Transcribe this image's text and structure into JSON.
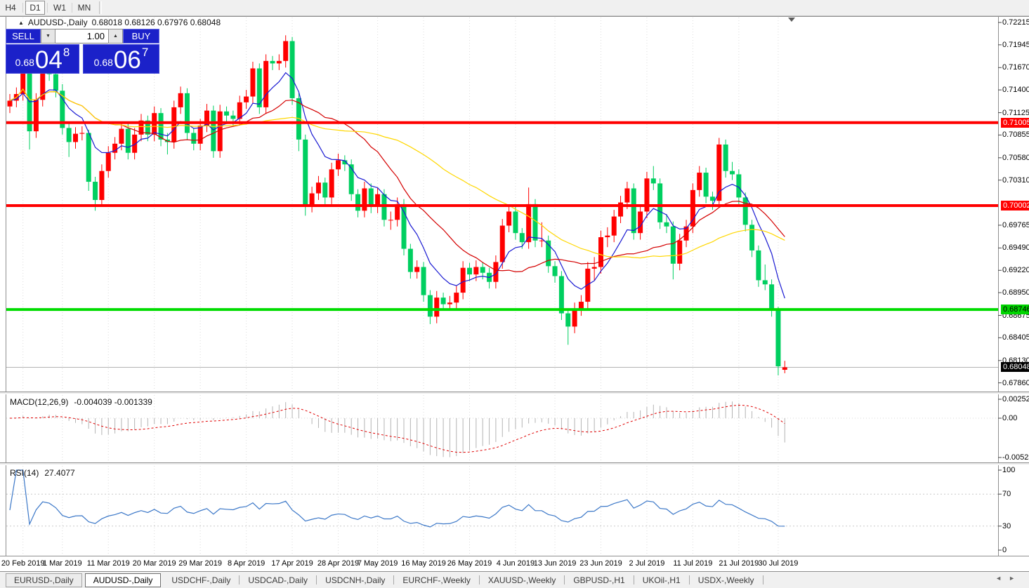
{
  "toolbar": {
    "timeframes": [
      {
        "label": "H4",
        "active": false
      },
      {
        "label": "D1",
        "active": true
      },
      {
        "label": "W1",
        "active": false
      },
      {
        "label": "MN",
        "active": false
      }
    ]
  },
  "chart": {
    "title": {
      "symbol": "AUDUSD-,Daily",
      "ohlc": "0.68018 0.68126 0.67976 0.68048"
    },
    "trade_panel": {
      "sell_label": "SELL",
      "buy_label": "BUY",
      "volume": "1.00",
      "sell_price": {
        "prefix": "0.68",
        "big": "04",
        "sup": "8"
      },
      "buy_price": {
        "prefix": "0.68",
        "big": "06",
        "sup": "7"
      },
      "panel_color": "#1b21c9"
    }
  },
  "price_scale": {
    "ticks": [
      {
        "label": "0.72215",
        "value": 0.72215
      },
      {
        "label": "0.71945",
        "value": 0.71945
      },
      {
        "label": "0.71670",
        "value": 0.7167
      },
      {
        "label": "0.71400",
        "value": 0.714
      },
      {
        "label": "0.71125",
        "value": 0.71125
      },
      {
        "label": "0.70855",
        "value": 0.70855
      },
      {
        "label": "0.70580",
        "value": 0.7058
      },
      {
        "label": "0.70310",
        "value": 0.7031
      },
      {
        "label": "0.69765",
        "value": 0.69765
      },
      {
        "label": "0.69490",
        "value": 0.6949
      },
      {
        "label": "0.69220",
        "value": 0.6922
      },
      {
        "label": "0.68950",
        "value": 0.6895
      },
      {
        "label": "0.68675",
        "value": 0.68675
      },
      {
        "label": "0.68405",
        "value": 0.68405
      },
      {
        "label": "0.68130",
        "value": 0.6813
      },
      {
        "label": "0.67860",
        "value": 0.6786
      }
    ],
    "markers": [
      {
        "label": "0.71005",
        "value": 0.71005,
        "bg": "#ff0000",
        "fg": "#ffffff"
      },
      {
        "label": "0.70002",
        "value": 0.70002,
        "bg": "#ff0000",
        "fg": "#ffffff"
      },
      {
        "label": "0.68746",
        "value": 0.68746,
        "bg": "#00d500",
        "fg": "#000000"
      },
      {
        "label": "0.68048",
        "value": 0.68048,
        "bg": "#000000",
        "fg": "#ffffff"
      }
    ]
  },
  "chart_data": {
    "type": "candlestick",
    "symbol": "AUDUSD-,Daily",
    "up_color": "#ff0000",
    "down_color": "#00cf60",
    "price_axis": {
      "top_value": 0.72283,
      "bottom_value": 0.67755
    },
    "horizontal_lines": [
      {
        "value": 0.71005,
        "color": "#ff0000",
        "width": 4
      },
      {
        "value": 0.70002,
        "color": "#ff0000",
        "width": 4
      },
      {
        "value": 0.68746,
        "color": "#00dc00",
        "width": 4
      }
    ],
    "current_price": {
      "value": 0.68048,
      "line_color": "#b4b4b4"
    },
    "moving_averages": [
      {
        "name": "fast",
        "color": "#1a1ad2",
        "method": "ema",
        "period": 8
      },
      {
        "name": "mid",
        "color": "#d40000",
        "method": "sma",
        "period": 18
      },
      {
        "name": "slow",
        "color": "#ffd700",
        "method": "sma",
        "period": 40
      }
    ],
    "x_ticks": [
      {
        "label": "20 Feb 2019",
        "index": 2
      },
      {
        "label": "1 Mar 2019",
        "index": 8
      },
      {
        "label": "11 Mar 2019",
        "index": 15
      },
      {
        "label": "20 Mar 2019",
        "index": 22
      },
      {
        "label": "29 Mar 2019",
        "index": 29
      },
      {
        "label": "8 Apr 2019",
        "index": 36
      },
      {
        "label": "17 Apr 2019",
        "index": 43
      },
      {
        "label": "28 Apr 2019",
        "index": 50
      },
      {
        "label": "7 May 2019",
        "index": 56
      },
      {
        "label": "16 May 2019",
        "index": 63
      },
      {
        "label": "26 May 2019",
        "index": 70
      },
      {
        "label": "4 Jun 2019",
        "index": 77
      },
      {
        "label": "13 Jun 2019",
        "index": 83
      },
      {
        "label": "23 Jun 2019",
        "index": 90
      },
      {
        "label": "2 Jul 2019",
        "index": 97
      },
      {
        "label": "11 Jul 2019",
        "index": 104
      },
      {
        "label": "21 Jul 2019",
        "index": 111
      },
      {
        "label": "30 Jul 2019",
        "index": 117
      }
    ],
    "bars": [
      [
        0.712,
        0.7135,
        0.7112,
        0.7127
      ],
      [
        0.7127,
        0.7143,
        0.7119,
        0.7135
      ],
      [
        0.7135,
        0.7168,
        0.7127,
        0.7161
      ],
      [
        0.7161,
        0.7164,
        0.7068,
        0.709
      ],
      [
        0.709,
        0.7136,
        0.7082,
        0.7128
      ],
      [
        0.7128,
        0.7177,
        0.712,
        0.7164
      ],
      [
        0.7164,
        0.717,
        0.7151,
        0.7159
      ],
      [
        0.7159,
        0.7165,
        0.7131,
        0.7139
      ],
      [
        0.7139,
        0.7147,
        0.7086,
        0.7094
      ],
      [
        0.7094,
        0.71,
        0.7059,
        0.7077
      ],
      [
        0.7077,
        0.7095,
        0.7069,
        0.7087
      ],
      [
        0.7087,
        0.7096,
        0.7079,
        0.7088
      ],
      [
        0.7088,
        0.7092,
        0.7018,
        0.7029
      ],
      [
        0.7029,
        0.7035,
        0.6994,
        0.7007
      ],
      [
        0.7007,
        0.705,
        0.6999,
        0.7042
      ],
      [
        0.7042,
        0.7072,
        0.7034,
        0.7064
      ],
      [
        0.7064,
        0.7083,
        0.7056,
        0.7075
      ],
      [
        0.7075,
        0.7101,
        0.7067,
        0.7093
      ],
      [
        0.7093,
        0.7099,
        0.7056,
        0.7064
      ],
      [
        0.7064,
        0.7094,
        0.7056,
        0.7086
      ],
      [
        0.7086,
        0.7111,
        0.7078,
        0.7103
      ],
      [
        0.7103,
        0.7109,
        0.7078,
        0.7086
      ],
      [
        0.7086,
        0.712,
        0.7078,
        0.7112
      ],
      [
        0.7112,
        0.7118,
        0.7072,
        0.708
      ],
      [
        0.708,
        0.7088,
        0.7062,
        0.7077
      ],
      [
        0.7077,
        0.7127,
        0.7069,
        0.7119
      ],
      [
        0.7119,
        0.7144,
        0.7111,
        0.7136
      ],
      [
        0.7136,
        0.7142,
        0.708,
        0.7088
      ],
      [
        0.7088,
        0.7094,
        0.7067,
        0.7075
      ],
      [
        0.7075,
        0.7105,
        0.7067,
        0.7097
      ],
      [
        0.7097,
        0.7123,
        0.7089,
        0.7115
      ],
      [
        0.7115,
        0.7121,
        0.7058,
        0.7066
      ],
      [
        0.7066,
        0.7122,
        0.7058,
        0.7114
      ],
      [
        0.7114,
        0.712,
        0.7101,
        0.7109
      ],
      [
        0.7109,
        0.7115,
        0.7097,
        0.7105
      ],
      [
        0.7105,
        0.7133,
        0.7097,
        0.7125
      ],
      [
        0.7125,
        0.714,
        0.7117,
        0.7132
      ],
      [
        0.7132,
        0.7174,
        0.7124,
        0.7166
      ],
      [
        0.7166,
        0.7172,
        0.7111,
        0.7119
      ],
      [
        0.7119,
        0.7183,
        0.7111,
        0.7175
      ],
      [
        0.7175,
        0.7181,
        0.7164,
        0.7172
      ],
      [
        0.7172,
        0.7183,
        0.7164,
        0.7175
      ],
      [
        0.7175,
        0.7206,
        0.7167,
        0.7199
      ],
      [
        0.7199,
        0.7204,
        0.7122,
        0.713
      ],
      [
        0.713,
        0.7136,
        0.7066,
        0.708
      ],
      [
        0.708,
        0.7086,
        0.6988,
        0.7
      ],
      [
        0.7,
        0.7023,
        0.6992,
        0.7015
      ],
      [
        0.7015,
        0.7036,
        0.7007,
        0.7028
      ],
      [
        0.7028,
        0.7034,
        0.7002,
        0.701
      ],
      [
        0.701,
        0.7052,
        0.7002,
        0.7044
      ],
      [
        0.7044,
        0.7063,
        0.7036,
        0.7055
      ],
      [
        0.7055,
        0.7061,
        0.7042,
        0.705
      ],
      [
        0.705,
        0.7056,
        0.7006,
        0.7014
      ],
      [
        0.7014,
        0.702,
        0.6986,
        0.6994
      ],
      [
        0.6994,
        0.7029,
        0.6986,
        0.7021
      ],
      [
        0.7021,
        0.7027,
        0.6991,
        0.6999
      ],
      [
        0.6999,
        0.7022,
        0.6991,
        0.7014
      ],
      [
        0.7014,
        0.702,
        0.6975,
        0.6983
      ],
      [
        0.6983,
        0.6993,
        0.6971,
        0.6983
      ],
      [
        0.6983,
        0.701,
        0.6975,
        0.7002
      ],
      [
        0.7002,
        0.7008,
        0.694,
        0.6948
      ],
      [
        0.6948,
        0.6954,
        0.6912,
        0.692
      ],
      [
        0.692,
        0.6934,
        0.6912,
        0.6926
      ],
      [
        0.6926,
        0.6932,
        0.6884,
        0.6892
      ],
      [
        0.6892,
        0.6898,
        0.6857,
        0.6866
      ],
      [
        0.6866,
        0.6897,
        0.6858,
        0.6889
      ],
      [
        0.6889,
        0.6895,
        0.6873,
        0.6881
      ],
      [
        0.6881,
        0.6891,
        0.6873,
        0.6883
      ],
      [
        0.6883,
        0.6903,
        0.6875,
        0.6895
      ],
      [
        0.6895,
        0.6933,
        0.6887,
        0.6925
      ],
      [
        0.6925,
        0.6931,
        0.6909,
        0.6917
      ],
      [
        0.6917,
        0.6934,
        0.6909,
        0.6926
      ],
      [
        0.6926,
        0.6932,
        0.6911,
        0.6919
      ],
      [
        0.6919,
        0.6925,
        0.69,
        0.6908
      ],
      [
        0.6908,
        0.694,
        0.69,
        0.6932
      ],
      [
        0.6932,
        0.6984,
        0.6924,
        0.6976
      ],
      [
        0.6976,
        0.7001,
        0.6968,
        0.6993
      ],
      [
        0.6993,
        0.6999,
        0.6959,
        0.6967
      ],
      [
        0.6967,
        0.6973,
        0.6948,
        0.6956
      ],
      [
        0.6956,
        0.7022,
        0.6948,
        0.7002
      ],
      [
        0.7002,
        0.7008,
        0.695,
        0.6958
      ],
      [
        0.6958,
        0.698,
        0.695,
        0.6958
      ],
      [
        0.6958,
        0.6964,
        0.6919,
        0.6927
      ],
      [
        0.6927,
        0.6933,
        0.6907,
        0.6915
      ],
      [
        0.6915,
        0.6921,
        0.6862,
        0.687
      ],
      [
        0.687,
        0.6876,
        0.6832,
        0.6854
      ],
      [
        0.6854,
        0.6883,
        0.6846,
        0.6875
      ],
      [
        0.6875,
        0.6892,
        0.6867,
        0.6884
      ],
      [
        0.6884,
        0.6932,
        0.6876,
        0.6924
      ],
      [
        0.6924,
        0.6938,
        0.691,
        0.6926
      ],
      [
        0.6926,
        0.697,
        0.6918,
        0.6962
      ],
      [
        0.6962,
        0.6974,
        0.695,
        0.6964
      ],
      [
        0.6964,
        0.6995,
        0.6956,
        0.6987
      ],
      [
        0.6987,
        0.7012,
        0.6979,
        0.7004
      ],
      [
        0.7004,
        0.7029,
        0.6996,
        0.7021
      ],
      [
        0.7021,
        0.7027,
        0.6959,
        0.6967
      ],
      [
        0.6967,
        0.7001,
        0.6959,
        0.6993
      ],
      [
        0.6993,
        0.7041,
        0.6985,
        0.7033
      ],
      [
        0.7033,
        0.7048,
        0.7019,
        0.7027
      ],
      [
        0.7027,
        0.7033,
        0.6972,
        0.698
      ],
      [
        0.698,
        0.699,
        0.6967,
        0.6975
      ],
      [
        0.6975,
        0.6981,
        0.6911,
        0.693
      ],
      [
        0.693,
        0.6966,
        0.6922,
        0.6958
      ],
      [
        0.6958,
        0.6983,
        0.695,
        0.6975
      ],
      [
        0.6975,
        0.7027,
        0.6967,
        0.7019
      ],
      [
        0.7019,
        0.7048,
        0.7011,
        0.704
      ],
      [
        0.704,
        0.7046,
        0.7003,
        0.7011
      ],
      [
        0.7011,
        0.7017,
        0.6995,
        0.7006
      ],
      [
        0.7006,
        0.7082,
        0.6998,
        0.7074
      ],
      [
        0.7074,
        0.708,
        0.7034,
        0.7042
      ],
      [
        0.7042,
        0.7053,
        0.7031,
        0.7038
      ],
      [
        0.7038,
        0.7044,
        0.7002,
        0.701
      ],
      [
        0.701,
        0.7016,
        0.6969,
        0.6977
      ],
      [
        0.6977,
        0.6983,
        0.6938,
        0.6946
      ],
      [
        0.6946,
        0.6952,
        0.6902,
        0.691
      ],
      [
        0.691,
        0.6929,
        0.6898,
        0.6905
      ],
      [
        0.6905,
        0.6911,
        0.6866,
        0.6874
      ],
      [
        0.6874,
        0.6878,
        0.6795,
        0.6806
      ],
      [
        0.68018,
        0.68126,
        0.67976,
        0.68048
      ]
    ],
    "indicators": {
      "macd": {
        "label": "MACD(12,26,9)",
        "values": "-0.004039 -0.001339",
        "fast": 12,
        "slow": 26,
        "signal": 9,
        "scale": {
          "top_label": "0.002522",
          "top_value": 0.002522,
          "zero_label": "0.00",
          "bottom_label": "-0.005234",
          "bottom_value": -0.005234
        },
        "histogram_color": "#b4b4b4",
        "signal_color": "#e00000"
      },
      "rsi": {
        "label": "RSI(14)",
        "value": "27.4077",
        "period": 14,
        "levels": [
          {
            "label": "100",
            "value": 100
          },
          {
            "label": "70",
            "value": 70
          },
          {
            "label": "30",
            "value": 30
          },
          {
            "label": "0",
            "value": 0
          }
        ],
        "line_color": "#3c78c8",
        "level_line_color": "#c8c8c8"
      }
    }
  },
  "tabs": {
    "items": [
      {
        "label": "EURUSD-,Daily",
        "state": "boxed"
      },
      {
        "label": "AUDUSD-,Daily",
        "state": "active"
      },
      {
        "label": "USDCHF-,Daily",
        "state": "plain"
      },
      {
        "label": "USDCAD-,Daily",
        "state": "plain"
      },
      {
        "label": "USDCNH-,Daily",
        "state": "plain"
      },
      {
        "label": "EURCHF-,Weekly",
        "state": "plain"
      },
      {
        "label": "XAUUSD-,Weekly",
        "state": "plain"
      },
      {
        "label": "GBPUSD-,H1",
        "state": "plain"
      },
      {
        "label": "UKOil-,H1",
        "state": "plain"
      },
      {
        "label": "USDX-,Weekly",
        "state": "plain"
      }
    ],
    "arrows": {
      "left": "◄",
      "right": "►"
    }
  }
}
